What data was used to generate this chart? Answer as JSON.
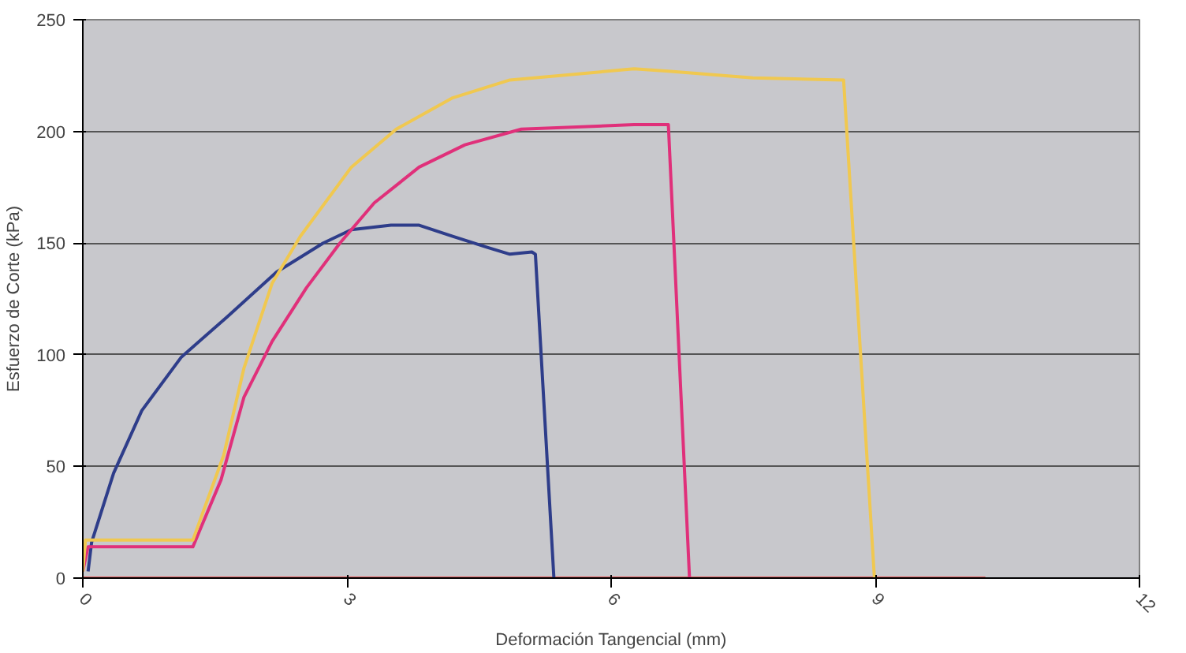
{
  "chart_data": {
    "type": "line",
    "xlabel": "Deformación Tangencial (mm)",
    "ylabel": "Esfuerzo de Corte (kPa)",
    "xlim": [
      0,
      12
    ],
    "ylim": [
      0,
      250
    ],
    "xticks": [
      0,
      3,
      6,
      9,
      12
    ],
    "yticks": [
      0,
      50,
      100,
      150,
      200,
      250
    ],
    "grid": "y",
    "marker": "none",
    "line_style": "solid",
    "series": [
      {
        "color": "#e05a5a",
        "x": [
          0,
          10.25
        ],
        "values": [
          0,
          0
        ]
      },
      {
        "color": "#2e3d8a",
        "x": [
          0.06,
          0.1,
          0.35,
          0.67,
          1.12,
          1.64,
          2.2,
          2.73,
          3.05,
          3.5,
          3.82,
          4.2,
          4.6,
          4.85,
          5.1,
          5.14,
          5.35
        ],
        "values": [
          3,
          16,
          47,
          75,
          99,
          117,
          137,
          150,
          156,
          158,
          158,
          153,
          148,
          145,
          146,
          145,
          0
        ]
      },
      {
        "color": "#e0307a",
        "x": [
          0,
          0.06,
          1.25,
          1.57,
          1.83,
          2.15,
          2.54,
          2.92,
          3.31,
          3.82,
          4.34,
          4.98,
          6.26,
          6.65,
          6.89
        ],
        "values": [
          3,
          14,
          14,
          44,
          81,
          106,
          130,
          150,
          168,
          184,
          194,
          201,
          203,
          203,
          0
        ]
      },
      {
        "color": "#f0c850",
        "x": [
          0,
          0.03,
          1.25,
          1.6,
          1.83,
          2.15,
          2.47,
          3.05,
          3.56,
          4.2,
          4.85,
          6.26,
          6.65,
          7.61,
          8.64,
          8.99
        ],
        "values": [
          3,
          17,
          17,
          55,
          94,
          132,
          153,
          184,
          201,
          215,
          223,
          228,
          227,
          224,
          223,
          0
        ]
      }
    ]
  }
}
